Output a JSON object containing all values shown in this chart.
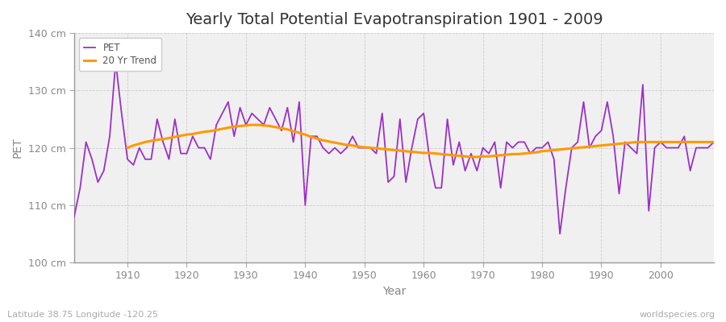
{
  "title": "Yearly Total Potential Evapotranspiration 1901 - 2009",
  "xlabel": "Year",
  "ylabel": "PET",
  "xlim": [
    1901,
    2009
  ],
  "ylim": [
    100,
    140
  ],
  "yticks": [
    100,
    110,
    120,
    130,
    140
  ],
  "ytick_labels": [
    "100 cm",
    "110 cm",
    "120 cm",
    "130 cm",
    "140 cm"
  ],
  "xticks": [
    1910,
    1920,
    1930,
    1940,
    1950,
    1960,
    1970,
    1980,
    1990,
    2000
  ],
  "fig_bg_color": "#ffffff",
  "plot_bg_color": "#f0f0f0",
  "pet_color": "#9b30c8",
  "trend_color": "#ff9900",
  "pet_linewidth": 1.3,
  "trend_linewidth": 2.2,
  "title_fontsize": 14,
  "axis_label_fontsize": 10,
  "tick_fontsize": 9,
  "watermark": "worldspecies.org",
  "caption": "Latitude 38.75 Longitude -120.25",
  "years": [
    1901,
    1902,
    1903,
    1904,
    1905,
    1906,
    1907,
    1908,
    1909,
    1910,
    1911,
    1912,
    1913,
    1914,
    1915,
    1916,
    1917,
    1918,
    1919,
    1920,
    1921,
    1922,
    1923,
    1924,
    1925,
    1926,
    1927,
    1928,
    1929,
    1930,
    1931,
    1932,
    1933,
    1934,
    1935,
    1936,
    1937,
    1938,
    1939,
    1940,
    1941,
    1942,
    1943,
    1944,
    1945,
    1946,
    1947,
    1948,
    1949,
    1950,
    1951,
    1952,
    1953,
    1954,
    1955,
    1956,
    1957,
    1958,
    1959,
    1960,
    1961,
    1962,
    1963,
    1964,
    1965,
    1966,
    1967,
    1968,
    1969,
    1970,
    1971,
    1972,
    1973,
    1974,
    1975,
    1976,
    1977,
    1978,
    1979,
    1980,
    1981,
    1982,
    1983,
    1984,
    1985,
    1986,
    1987,
    1988,
    1989,
    1990,
    1991,
    1992,
    1993,
    1994,
    1995,
    1996,
    1997,
    1998,
    1999,
    2000,
    2001,
    2002,
    2003,
    2004,
    2005,
    2006,
    2007,
    2008,
    2009
  ],
  "pet": [
    108,
    113,
    121,
    118,
    114,
    116,
    122,
    135,
    126,
    118,
    117,
    120,
    118,
    118,
    125,
    121,
    118,
    125,
    119,
    119,
    122,
    120,
    120,
    118,
    124,
    126,
    128,
    122,
    127,
    124,
    126,
    125,
    124,
    127,
    125,
    123,
    127,
    121,
    128,
    110,
    122,
    122,
    120,
    119,
    120,
    119,
    120,
    122,
    120,
    120,
    120,
    119,
    126,
    114,
    115,
    125,
    114,
    120,
    125,
    126,
    118,
    113,
    113,
    125,
    117,
    121,
    116,
    119,
    116,
    120,
    119,
    121,
    113,
    121,
    120,
    121,
    121,
    119,
    120,
    120,
    121,
    118,
    105,
    113,
    120,
    121,
    128,
    120,
    122,
    123,
    128,
    122,
    112,
    121,
    120,
    119,
    131,
    109,
    120,
    121,
    120,
    120,
    120,
    122,
    116,
    120,
    120,
    120,
    121
  ],
  "trend_years": [
    1910,
    1911,
    1912,
    1913,
    1914,
    1915,
    1916,
    1917,
    1918,
    1919,
    1920,
    1921,
    1922,
    1923,
    1924,
    1925,
    1926,
    1927,
    1928,
    1929,
    1930,
    1931,
    1932,
    1933,
    1934,
    1935,
    1936,
    1937,
    1938,
    1939,
    1940,
    1941,
    1942,
    1943,
    1944,
    1945,
    1946,
    1947,
    1948,
    1949,
    1950,
    1951,
    1952,
    1953,
    1954,
    1955,
    1956,
    1957,
    1958,
    1959,
    1960,
    1961,
    1962,
    1963,
    1964,
    1965,
    1966,
    1967,
    1968,
    1969,
    1970,
    1971,
    1972,
    1973,
    1974,
    1975,
    1976,
    1977,
    1978,
    1979,
    1980,
    1981,
    1982,
    1983,
    1984,
    1985,
    1986,
    1987,
    1988,
    1989,
    1990,
    1991,
    1992,
    1993,
    1994,
    1995,
    1996,
    1997,
    1998,
    1999,
    2000,
    2001,
    2002,
    2003,
    2004,
    2005,
    2006,
    2007,
    2008,
    2009
  ],
  "trend": [
    120.0,
    120.4,
    120.7,
    121.0,
    121.2,
    121.4,
    121.5,
    121.7,
    121.9,
    122.1,
    122.3,
    122.4,
    122.6,
    122.8,
    122.9,
    123.1,
    123.3,
    123.5,
    123.7,
    123.8,
    123.9,
    124.0,
    124.0,
    123.9,
    123.8,
    123.6,
    123.4,
    123.2,
    122.9,
    122.6,
    122.3,
    121.9,
    121.6,
    121.3,
    121.1,
    120.9,
    120.7,
    120.5,
    120.4,
    120.2,
    120.1,
    120.0,
    119.9,
    119.8,
    119.7,
    119.6,
    119.5,
    119.4,
    119.3,
    119.2,
    119.1,
    119.1,
    119.0,
    118.9,
    118.8,
    118.7,
    118.6,
    118.5,
    118.4,
    118.4,
    118.5,
    118.5,
    118.6,
    118.7,
    118.8,
    118.9,
    118.9,
    119.0,
    119.1,
    119.2,
    119.4,
    119.5,
    119.6,
    119.7,
    119.8,
    119.9,
    120.0,
    120.1,
    120.2,
    120.3,
    120.4,
    120.5,
    120.6,
    120.7,
    120.8,
    120.9,
    121.0,
    121.0,
    121.0,
    121.0,
    121.0,
    121.0,
    121.0,
    121.0,
    121.0,
    121.0,
    121.0,
    121.0,
    121.0,
    121.0
  ]
}
